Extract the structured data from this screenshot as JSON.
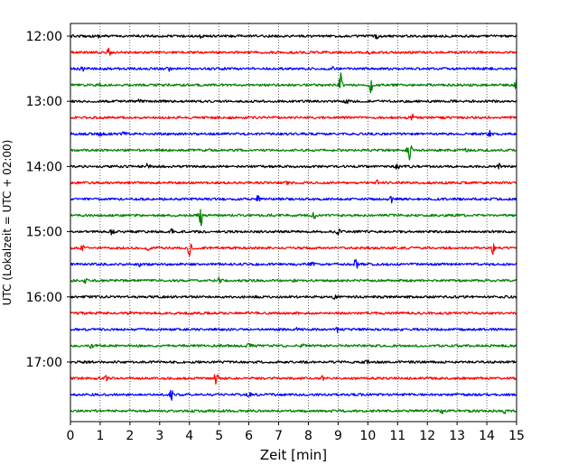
{
  "chart_data": {
    "type": "line",
    "xlabel": "Zeit  [min]",
    "ylabel": "UTC (Lokalzeit = UTC + 02:00)",
    "xlim": [
      0,
      15
    ],
    "x_ticks": [
      0,
      1,
      2,
      3,
      4,
      5,
      6,
      7,
      8,
      9,
      10,
      11,
      12,
      13,
      14,
      15
    ],
    "y_tick_labels": [
      "12:00",
      "13:00",
      "14:00",
      "15:00",
      "16:00",
      "17:00"
    ],
    "grid": "vertical dotted lines at each minute",
    "trace_colors": [
      "#000000",
      "#ff0000",
      "#0000ff",
      "#008000"
    ],
    "traces": [
      {
        "start": "12:00",
        "events": [
          {
            "t": 1.0,
            "a": 2
          },
          {
            "t": 4.4,
            "a": 2
          },
          {
            "t": 10.3,
            "a": 2
          }
        ]
      },
      {
        "start": "12:15",
        "events": [
          {
            "t": 1.3,
            "a": 4
          },
          {
            "t": 10.0,
            "a": 3
          }
        ]
      },
      {
        "start": "12:30",
        "events": [
          {
            "t": 0.4,
            "a": 2
          },
          {
            "t": 3.3,
            "a": 2
          },
          {
            "t": 8.8,
            "a": 2
          }
        ]
      },
      {
        "start": "12:45",
        "events": [
          {
            "t": 1.0,
            "a": 2
          },
          {
            "t": 9.1,
            "a": 14
          },
          {
            "t": 10.1,
            "a": 8
          },
          {
            "t": 15.0,
            "a": 6
          }
        ]
      },
      {
        "start": "13:00",
        "events": [
          {
            "t": 2.3,
            "a": 2
          },
          {
            "t": 9.3,
            "a": 2
          }
        ]
      },
      {
        "start": "13:15",
        "events": [
          {
            "t": 11.5,
            "a": 3
          }
        ]
      },
      {
        "start": "13:30",
        "events": [
          {
            "t": 1.0,
            "a": 2
          },
          {
            "t": 1.8,
            "a": 3
          },
          {
            "t": 14.1,
            "a": 3
          }
        ]
      },
      {
        "start": "13:45",
        "events": [
          {
            "t": 11.4,
            "a": 10
          },
          {
            "t": 13.3,
            "a": 2
          }
        ]
      },
      {
        "start": "14:00",
        "events": [
          {
            "t": 2.6,
            "a": 3
          },
          {
            "t": 11.0,
            "a": 5
          },
          {
            "t": 14.4,
            "a": 3
          }
        ]
      },
      {
        "start": "14:15",
        "events": [
          {
            "t": 7.3,
            "a": 2
          },
          {
            "t": 10.3,
            "a": 2
          }
        ]
      },
      {
        "start": "14:30",
        "events": [
          {
            "t": 6.3,
            "a": 3
          },
          {
            "t": 10.8,
            "a": 3
          }
        ]
      },
      {
        "start": "14:45",
        "events": [
          {
            "t": 4.4,
            "a": 12
          },
          {
            "t": 6.8,
            "a": 3
          },
          {
            "t": 8.2,
            "a": 3
          }
        ]
      },
      {
        "start": "15:00",
        "events": [
          {
            "t": 1.4,
            "a": 3
          },
          {
            "t": 3.4,
            "a": 3
          },
          {
            "t": 4.6,
            "a": 4
          },
          {
            "t": 9.0,
            "a": 3
          }
        ]
      },
      {
        "start": "15:15",
        "events": [
          {
            "t": 0.4,
            "a": 2
          },
          {
            "t": 2.6,
            "a": 2
          },
          {
            "t": 4.0,
            "a": 8
          },
          {
            "t": 14.2,
            "a": 6
          }
        ]
      },
      {
        "start": "15:30",
        "events": [
          {
            "t": 2.3,
            "a": 2
          },
          {
            "t": 8.1,
            "a": 3
          },
          {
            "t": 9.6,
            "a": 6
          }
        ]
      },
      {
        "start": "15:45",
        "events": [
          {
            "t": 0.5,
            "a": 2
          },
          {
            "t": 5.0,
            "a": 3
          },
          {
            "t": 7.5,
            "a": 2
          }
        ]
      },
      {
        "start": "16:00",
        "events": [
          {
            "t": 8.9,
            "a": 2
          }
        ]
      },
      {
        "start": "16:15",
        "events": [
          {
            "t": 2.0,
            "a": 2
          }
        ]
      },
      {
        "start": "16:30",
        "events": [
          {
            "t": 7.6,
            "a": 2
          },
          {
            "t": 9.0,
            "a": 3
          }
        ]
      },
      {
        "start": "16:45",
        "events": [
          {
            "t": 0.7,
            "a": 3
          },
          {
            "t": 6.0,
            "a": 3
          },
          {
            "t": 7.8,
            "a": 2
          }
        ]
      },
      {
        "start": "17:00",
        "events": [
          {
            "t": 10.0,
            "a": 2
          }
        ]
      },
      {
        "start": "17:15",
        "events": [
          {
            "t": 1.2,
            "a": 2
          },
          {
            "t": 4.9,
            "a": 7
          },
          {
            "t": 8.5,
            "a": 3
          }
        ]
      },
      {
        "start": "17:30",
        "events": [
          {
            "t": 3.4,
            "a": 5
          },
          {
            "t": 6.0,
            "a": 2
          }
        ]
      },
      {
        "start": "17:45",
        "events": [
          {
            "t": 12.5,
            "a": 2
          },
          {
            "t": 14.6,
            "a": 2
          }
        ]
      }
    ]
  }
}
